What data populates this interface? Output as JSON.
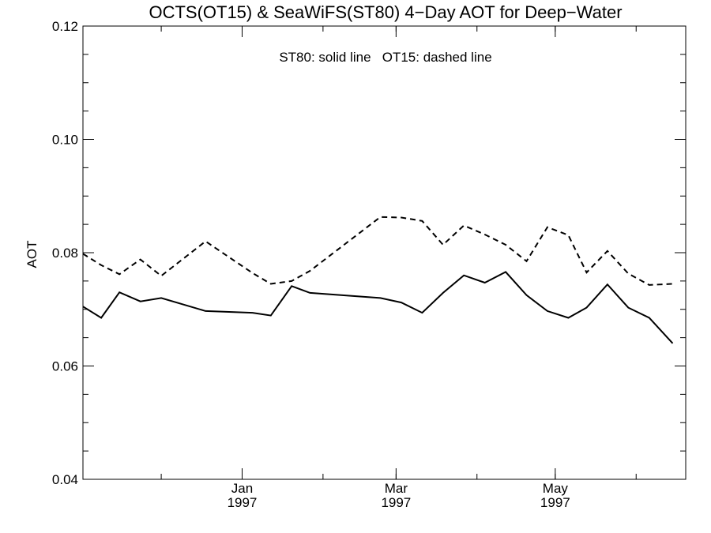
{
  "chart_data": {
    "type": "line",
    "title": "OCTS(OT15) & SeaWiFS(ST80) 4−Day AOT for Deep−Water",
    "annotation": "ST80: solid line   OT15: dashed line",
    "xlabel": "",
    "ylabel": "AOT",
    "ylim": [
      0.04,
      0.12
    ],
    "y_ticks": [
      "0.04",
      "0.06",
      "0.08",
      "0.10",
      "0.12"
    ],
    "x_range": [
      "1996-11-01",
      "1997-06-20"
    ],
    "x_ticks": [
      {
        "date": "1997-01-01",
        "month": "Jan",
        "year": "1997"
      },
      {
        "date": "1997-03-01",
        "month": "Mar",
        "year": "1997"
      },
      {
        "date": "1997-05-01",
        "month": "May",
        "year": "1997"
      }
    ],
    "grid": false,
    "series": [
      {
        "name": "ST80",
        "style": "solid",
        "color": "#000000",
        "points": [
          [
            "1996-11-01",
            0.0705
          ],
          [
            "1996-11-08",
            0.0685
          ],
          [
            "1996-11-15",
            0.073
          ],
          [
            "1996-11-23",
            0.0714
          ],
          [
            "1996-12-01",
            0.072
          ],
          [
            "1996-12-18",
            0.0697
          ],
          [
            "1997-01-05",
            0.0694
          ],
          [
            "1997-01-12",
            0.0689
          ],
          [
            "1997-01-20",
            0.0741
          ],
          [
            "1997-01-27",
            0.0729
          ],
          [
            "1997-02-23",
            0.072
          ],
          [
            "1997-03-03",
            0.0712
          ],
          [
            "1997-03-11",
            0.0694
          ],
          [
            "1997-03-19",
            0.0729
          ],
          [
            "1997-03-27",
            0.076
          ],
          [
            "1997-04-04",
            0.0747
          ],
          [
            "1997-04-12",
            0.0766
          ],
          [
            "1997-04-20",
            0.0725
          ],
          [
            "1997-04-28",
            0.0697
          ],
          [
            "1997-05-06",
            0.0685
          ],
          [
            "1997-05-13",
            0.0703
          ],
          [
            "1997-05-21",
            0.0744
          ],
          [
            "1997-05-29",
            0.0703
          ],
          [
            "1997-06-06",
            0.0685
          ],
          [
            "1997-06-15",
            0.064
          ]
        ]
      },
      {
        "name": "OT15",
        "style": "dashed",
        "color": "#000000",
        "points": [
          [
            "1996-11-01",
            0.0798
          ],
          [
            "1996-11-08",
            0.0778
          ],
          [
            "1996-11-15",
            0.0762
          ],
          [
            "1996-11-23",
            0.0788
          ],
          [
            "1996-12-01",
            0.0759
          ],
          [
            "1996-12-18",
            0.082
          ],
          [
            "1997-01-05",
            0.0764
          ],
          [
            "1997-01-12",
            0.0745
          ],
          [
            "1997-01-20",
            0.075
          ],
          [
            "1997-01-27",
            0.0768
          ],
          [
            "1997-02-23",
            0.0863
          ],
          [
            "1997-03-03",
            0.0862
          ],
          [
            "1997-03-11",
            0.0856
          ],
          [
            "1997-03-19",
            0.0814
          ],
          [
            "1997-03-27",
            0.0848
          ],
          [
            "1997-04-04",
            0.0832
          ],
          [
            "1997-04-12",
            0.0814
          ],
          [
            "1997-04-20",
            0.0785
          ],
          [
            "1997-04-28",
            0.0845
          ],
          [
            "1997-05-06",
            0.0831
          ],
          [
            "1997-05-13",
            0.0765
          ],
          [
            "1997-05-21",
            0.0803
          ],
          [
            "1997-05-29",
            0.0763
          ],
          [
            "1997-06-06",
            0.0743
          ],
          [
            "1997-06-15",
            0.0745
          ]
        ]
      }
    ]
  }
}
